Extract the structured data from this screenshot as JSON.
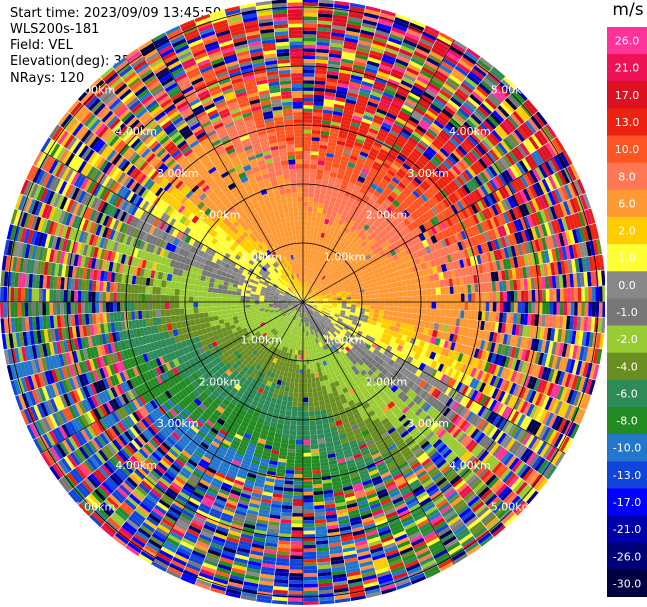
{
  "header": {
    "start_time": "Start time: 2023/09/09 13:45:50",
    "instrument": "WLS200s-181",
    "field": "Field: VEL",
    "elevation": "Elevation(deg): 35.30",
    "nrays": "NRays: 120"
  },
  "colorbar": {
    "unit": "m/s",
    "ticks": [
      "26.0",
      "21.0",
      "17.0",
      "13.0",
      "10.0",
      "8.0",
      "6.0",
      "2.0",
      "1.0",
      "0.0",
      "-1.0",
      "-2.0",
      "-4.0",
      "-6.0",
      "-8.0",
      "-10.0",
      "-13.0",
      "-17.0",
      "-21.0",
      "-26.0",
      "-30.0"
    ],
    "colors": [
      "#ff3399",
      "#ee1155",
      "#dd1122",
      "#ee2211",
      "#ff5522",
      "#ff7755",
      "#ff9933",
      "#ffcc00",
      "#ffff33",
      "#888888",
      "#777777",
      "#99cc33",
      "#6b8e23",
      "#2e8b57",
      "#228b22",
      "#2277cc",
      "#1144dd",
      "#0000ff",
      "#0000aa",
      "#000077",
      "#000040"
    ]
  },
  "chart_data": {
    "type": "ppi",
    "title": "",
    "field": "VEL",
    "units": "m/s",
    "range_rings_km": [
      1,
      2,
      3,
      4,
      5
    ],
    "ring_label": "km",
    "n_rays": 120,
    "elevation_deg": 35.3,
    "value_range": [
      -30.0,
      26.0
    ],
    "velocity_pattern": {
      "receding_sector_deg": [
        300,
        120
      ],
      "approaching_sector_deg": [
        150,
        270
      ],
      "near_zero_transition": true
    }
  }
}
